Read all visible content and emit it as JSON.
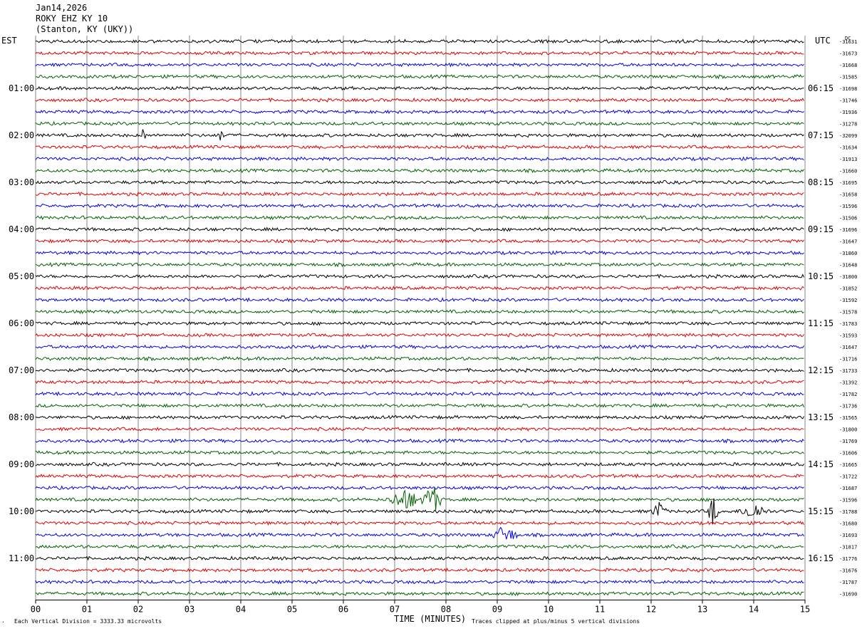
{
  "header": {
    "date": "Jan14,2026",
    "station": "ROKY EHZ KY 10",
    "location": "(Stanton, KY (UKY))"
  },
  "left_tz": "EST",
  "right_tz": "UTC",
  "dc_label": "DC",
  "footer": {
    "scale_note": "Each Vertical Division = 3333.33 microvolts",
    "xaxis_title": "TIME (MINUTES)",
    "clip_note": "Traces clipped at plus/minus 5 vertical divisions"
  },
  "chart_data": {
    "type": "line",
    "subtype": "helicorder",
    "x_range_minutes": [
      0,
      15
    ],
    "x_ticks": [
      "00",
      "01",
      "02",
      "03",
      "04",
      "05",
      "06",
      "07",
      "08",
      "09",
      "10",
      "11",
      "12",
      "13",
      "14",
      "15"
    ],
    "xlabel": "TIME (MINUTES)",
    "trace_colors": [
      "#000000",
      "#e00000",
      "#0000e0",
      "#006000"
    ],
    "trace_count": 48,
    "left_hour_labels": [
      "01:00",
      "02:00",
      "03:00",
      "04:00",
      "05:00",
      "06:00",
      "07:00",
      "08:00",
      "09:00",
      "10:00",
      "11:00"
    ],
    "right_hour_labels": [
      "06:15",
      "07:15",
      "08:15",
      "09:15",
      "10:15",
      "11:15",
      "12:15",
      "13:15",
      "14:15",
      "15:15",
      "16:15"
    ],
    "dc_offsets": [
      "-31631",
      "-31673",
      "-31668",
      "-31585",
      "-31698",
      "-31746",
      "-31936",
      "-31278",
      "-32099",
      "-31634",
      "-31913",
      "-31660",
      "-31695",
      "-31658",
      "-31596",
      "-31506",
      "-31696",
      "-31647",
      "-31860",
      "-31648",
      "-31800",
      "-31852",
      "-31592",
      "-31578",
      "-31783",
      "-31593",
      "-31647",
      "-31716",
      "-31733",
      "-31392",
      "-31782",
      "-31736",
      "-31565",
      "-31800",
      "-31769",
      "-31606",
      "-31665",
      "-31722",
      "-31687",
      "-31596",
      "-31788",
      "-31680",
      "-31693",
      "-31817",
      "-31776",
      "-31676",
      "-31787",
      "-31690"
    ],
    "events": [
      {
        "trace": 8,
        "start_min": 2.05,
        "end_min": 2.15,
        "amplitude": 1.3
      },
      {
        "trace": 8,
        "start_min": 3.55,
        "end_min": 3.7,
        "amplitude": 1.1
      },
      {
        "trace": 39,
        "start_min": 6.85,
        "end_min": 7.55,
        "amplitude": 1.8
      },
      {
        "trace": 39,
        "start_min": 7.55,
        "end_min": 7.9,
        "amplitude": 3.0
      },
      {
        "trace": 40,
        "start_min": 12.0,
        "end_min": 12.3,
        "amplitude": 1.6
      },
      {
        "trace": 40,
        "start_min": 13.1,
        "end_min": 13.3,
        "amplitude": 3.0
      },
      {
        "trace": 40,
        "start_min": 13.7,
        "end_min": 14.3,
        "amplitude": 1.4
      },
      {
        "trace": 42,
        "start_min": 8.9,
        "end_min": 9.4,
        "amplitude": 1.6
      }
    ]
  }
}
